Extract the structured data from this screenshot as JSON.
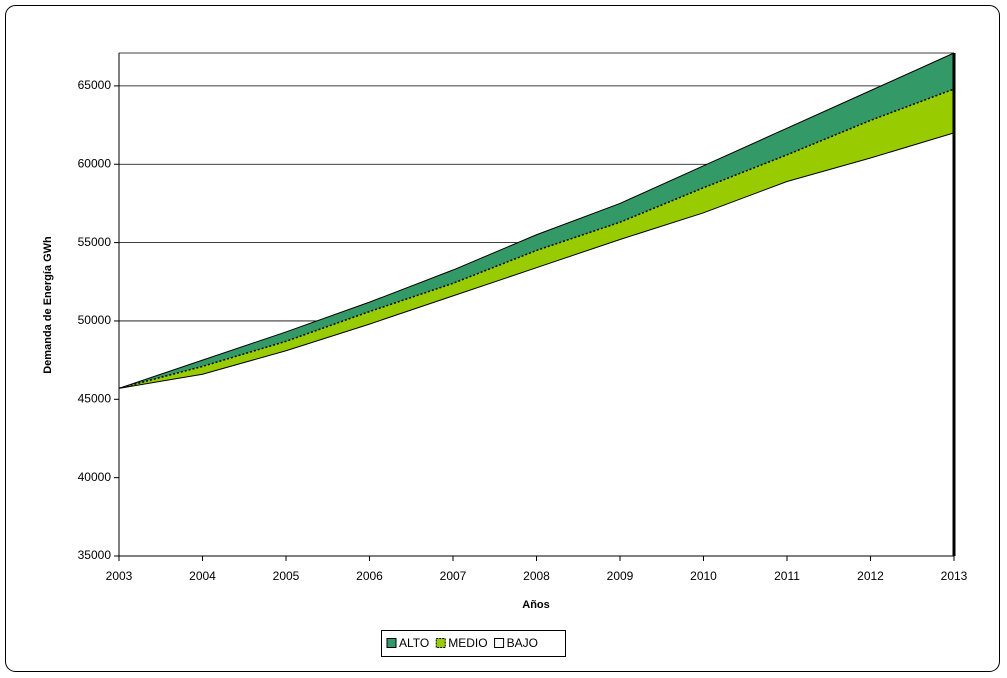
{
  "chart_data": {
    "type": "area",
    "x_label": "Años",
    "y_label": "Demanda de Energía GWh",
    "x": [
      2003,
      2004,
      2005,
      2006,
      2007,
      2008,
      2009,
      2010,
      2011,
      2012,
      2013
    ],
    "xlim": [
      2003,
      2013
    ],
    "xticks": [
      2003,
      2004,
      2005,
      2006,
      2007,
      2008,
      2009,
      2010,
      2011,
      2012,
      2013
    ],
    "ylim": [
      35000,
      67100
    ],
    "yticks": [
      35000,
      40000,
      45000,
      50000,
      55000,
      60000,
      65000
    ],
    "grid": true,
    "legend": "bottom",
    "series": [
      {
        "name": "ALTO",
        "color": "#339966",
        "values": [
          45700,
          47500,
          49300,
          51200,
          53250,
          55500,
          57500,
          59900,
          62300,
          64700,
          67100
        ]
      },
      {
        "name": "MEDIO",
        "color": "#99cc00",
        "values": [
          45700,
          47100,
          48700,
          50600,
          52400,
          54500,
          56300,
          58500,
          60600,
          62800,
          64800
        ]
      },
      {
        "name": "BAJO",
        "color": "#ffffff",
        "values": [
          45700,
          46600,
          48100,
          49800,
          51600,
          53400,
          55200,
          56900,
          58900,
          60400,
          62000
        ]
      }
    ]
  }
}
